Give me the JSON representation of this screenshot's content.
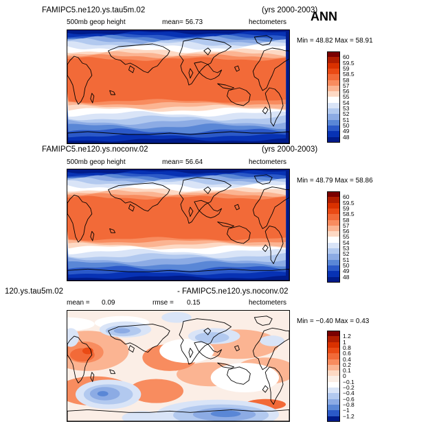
{
  "season_label": "ANN",
  "panels": [
    {
      "title": "FAMIPC5.ne120.ys.tau5m.02",
      "years": "(yrs 2000-2003)",
      "field": "500mb geop height",
      "mean_label": "mean=",
      "mean_value": "56.73",
      "units": "hectometers",
      "minmax": "Min =   48.82  Max =   58.91"
    },
    {
      "title": "FAMIPC5.ne120.ys.noconv.02",
      "years": "(yrs 2000-2003)",
      "field": "500mb geop height",
      "mean_label": "mean=",
      "mean_value": "56.64",
      "units": "hectometers",
      "minmax": "Min =   48.79  Max =   58.86"
    },
    {
      "title_left": "120.ys.tau5m.02",
      "title_right": "- FAMIPC5.ne120.ys.noconv.02",
      "mean_label": "mean =",
      "mean_value": "0.09",
      "rmse_label": "rmse =",
      "rmse_value": "0.15",
      "units": "hectometers",
      "minmax": "Min =  −0.40  Max =    0.43"
    }
  ],
  "chart_data": [
    {
      "type": "heatmap",
      "title": "FAMIPC5.ne120.ys.tau5m.02",
      "subtitle": "500mb geop height",
      "units": "hectometers",
      "mean": 56.73,
      "min": 48.82,
      "max": 58.91,
      "levels": [
        "60",
        "59.5",
        "59",
        "58.5",
        "58",
        "57",
        "56",
        "55",
        "54",
        "53",
        "52",
        "51",
        "50",
        "49",
        "48"
      ],
      "colors": [
        "#7a0000",
        "#b11d00",
        "#d93100",
        "#ea4a14",
        "#f26a38",
        "#f88c5f",
        "#fbb492",
        "#fdd9c4",
        "#ffffff",
        "#d9e4f7",
        "#b2c9ef",
        "#8cabe4",
        "#5a87d6",
        "#2b59c8",
        "#0732b4",
        "#001b8a"
      ]
    },
    {
      "type": "heatmap",
      "title": "FAMIPC5.ne120.ys.noconv.02",
      "subtitle": "500mb geop height",
      "units": "hectometers",
      "mean": 56.64,
      "min": 48.79,
      "max": 58.86,
      "levels": [
        "60",
        "59.5",
        "59",
        "58.5",
        "58",
        "57",
        "56",
        "55",
        "54",
        "53",
        "52",
        "51",
        "50",
        "49",
        "48"
      ],
      "colors": [
        "#7a0000",
        "#b11d00",
        "#d93100",
        "#ea4a14",
        "#f26a38",
        "#f88c5f",
        "#fbb492",
        "#fdd9c4",
        "#ffffff",
        "#d9e4f7",
        "#b2c9ef",
        "#8cabe4",
        "#5a87d6",
        "#2b59c8",
        "#0732b4",
        "#001b8a"
      ]
    },
    {
      "type": "heatmap",
      "title": "120.ys.tau5m.02 - FAMIPC5.ne120.ys.noconv.02",
      "units": "hectometers",
      "mean": 0.09,
      "rmse": 0.15,
      "min": -0.4,
      "max": 0.43,
      "levels": [
        "1.2",
        "1",
        "0.8",
        "0.6",
        "0.4",
        "0.2",
        "0.1",
        "0",
        "−0.1",
        "−0.2",
        "−0.4",
        "−0.6",
        "−0.8",
        "−1",
        "−1.2"
      ],
      "colors": [
        "#7a0000",
        "#b11d00",
        "#d93100",
        "#ea4a14",
        "#f26a38",
        "#f88c5f",
        "#fbb492",
        "#fdd9c4",
        "#fbeee6",
        "#ffffff",
        "#d9e4f7",
        "#b2c9ef",
        "#8cabe4",
        "#5a87d6",
        "#2b59c8",
        "#001b8a"
      ]
    }
  ]
}
